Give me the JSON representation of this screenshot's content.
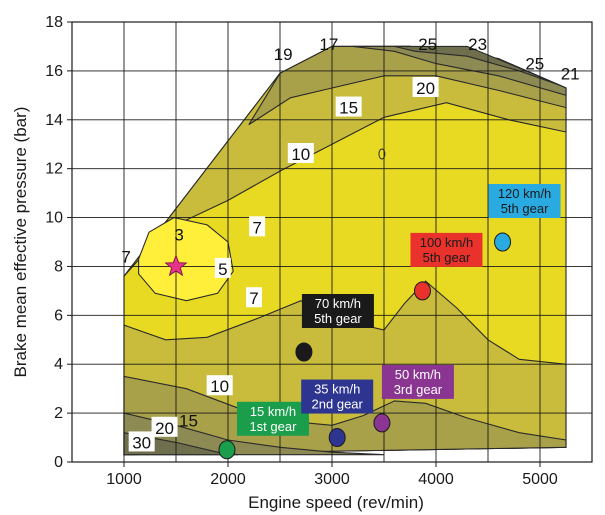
{
  "chart_data": {
    "type": "contour",
    "xlabel": "Engine speed (rev/min)",
    "ylabel": "Brake mean effective pressure (bar)",
    "xlim": [
      500,
      5500
    ],
    "ylim": [
      0,
      18
    ],
    "xticks": [
      1000,
      2000,
      3000,
      4000,
      5000
    ],
    "yticks": [
      0,
      2,
      4,
      6,
      8,
      10,
      12,
      14,
      16,
      18
    ],
    "grid_x": [
      1000,
      1500,
      2000,
      2500,
      3000,
      3500,
      4000,
      4500,
      5000
    ],
    "grid_y": [
      0,
      2,
      4,
      6,
      8,
      10,
      12,
      14,
      16
    ],
    "optimum": {
      "label": "3",
      "x": 1500,
      "y": 8,
      "color": "#e8338a"
    },
    "contour_labels": [
      {
        "text": "19",
        "x": 2530,
        "y": 16.7,
        "boxed": false
      },
      {
        "text": "17",
        "x": 2970,
        "y": 17.1,
        "boxed": false
      },
      {
        "text": "25",
        "x": 3920,
        "y": 17.1,
        "boxed": false
      },
      {
        "text": "23",
        "x": 4400,
        "y": 17.1,
        "boxed": false
      },
      {
        "text": "25",
        "x": 4950,
        "y": 16.3,
        "boxed": false
      },
      {
        "text": "21",
        "x": 5290,
        "y": 15.9,
        "boxed": false
      },
      {
        "text": "20",
        "x": 3900,
        "y": 15.3,
        "boxed": true
      },
      {
        "text": "15",
        "x": 3160,
        "y": 14.5,
        "boxed": true
      },
      {
        "text": "10",
        "x": 2700,
        "y": 12.6,
        "boxed": true
      },
      {
        "text": "7",
        "x": 2280,
        "y": 9.6,
        "boxed": true
      },
      {
        "text": "7",
        "x": 1020,
        "y": 8.4,
        "boxed": false
      },
      {
        "text": "3",
        "x": 1530,
        "y": 9.3,
        "boxed": false
      },
      {
        "text": "5",
        "x": 1950,
        "y": 7.9,
        "boxed": true
      },
      {
        "text": "7",
        "x": 2250,
        "y": 6.7,
        "boxed": true
      },
      {
        "text": "10",
        "x": 1920,
        "y": 3.1,
        "boxed": true
      },
      {
        "text": "15",
        "x": 1620,
        "y": 1.7,
        "boxed": false
      },
      {
        "text": "20",
        "x": 1390,
        "y": 1.4,
        "boxed": true
      },
      {
        "text": "30",
        "x": 1170,
        "y": 0.8,
        "boxed": true
      }
    ],
    "points": [
      {
        "label_lines": [
          "15 km/h",
          "1st gear"
        ],
        "x": 1990,
        "y": 0.5,
        "color": "#1a9e4c",
        "text_color": "#ffffff"
      },
      {
        "label_lines": [
          "35 km/h",
          "2nd gear"
        ],
        "x": 3050,
        "y": 1.0,
        "color": "#2d3590",
        "text_color": "#ffffff"
      },
      {
        "label_lines": [
          "50 km/h",
          "3rd gear"
        ],
        "x": 3480,
        "y": 1.6,
        "color": "#8a3591",
        "text_color": "#ffffff"
      },
      {
        "label_lines": [
          "70 km/h",
          "5th gear"
        ],
        "x": 2730,
        "y": 4.5,
        "color": "#1a1a1a",
        "text_color": "#ffffff"
      },
      {
        "label_lines": [
          "100 km/h",
          "5th gear"
        ],
        "x": 3870,
        "y": 7.0,
        "color": "#e8322b",
        "text_color": "#1a1a1a"
      },
      {
        "label_lines": [
          "120 km/h",
          "5th gear"
        ],
        "x": 4640,
        "y": 9.0,
        "color": "#29abe2",
        "text_color": "#1a1a1a"
      }
    ],
    "colors": {
      "bright": "#ffef3a",
      "light": "#e8da22",
      "mid": "#c9bc3c",
      "mid2": "#a9a04a",
      "dark": "#8d8a54",
      "darker": "#6f6f4e",
      "line": "#2a2a2a"
    }
  }
}
